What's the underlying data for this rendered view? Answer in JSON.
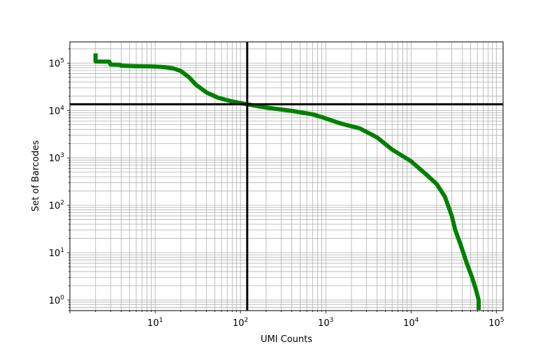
{
  "chart_data": {
    "type": "line",
    "title": "",
    "xlabel": "UMI Counts",
    "ylabel": "Set of Barcodes",
    "xscale": "log",
    "yscale": "log",
    "xlim": [
      1,
      120000
    ],
    "ylim": [
      0.6,
      280000
    ],
    "grid": "on (major and minor)",
    "x_ticks": [
      {
        "base": "10",
        "exp": "1",
        "value": 10
      },
      {
        "base": "10",
        "exp": "2",
        "value": 100
      },
      {
        "base": "10",
        "exp": "3",
        "value": 1000
      },
      {
        "base": "10",
        "exp": "4",
        "value": 10000
      },
      {
        "base": "10",
        "exp": "5",
        "value": 100000
      }
    ],
    "y_ticks": [
      {
        "base": "10",
        "exp": "0",
        "value": 1
      },
      {
        "base": "10",
        "exp": "1",
        "value": 10
      },
      {
        "base": "10",
        "exp": "2",
        "value": 100
      },
      {
        "base": "10",
        "exp": "3",
        "value": 1000
      },
      {
        "base": "10",
        "exp": "4",
        "value": 10000
      },
      {
        "base": "10",
        "exp": "5",
        "value": 100000
      }
    ],
    "series": [
      {
        "color": "#008000",
        "points": [
          [
            2,
            160000
          ],
          [
            2,
            108000
          ],
          [
            2.9,
            107000
          ],
          [
            3,
            93000
          ],
          [
            3.9,
            92000
          ],
          [
            4,
            88000
          ],
          [
            6,
            86000
          ],
          [
            9,
            85000
          ],
          [
            12,
            83000
          ],
          [
            16,
            78000
          ],
          [
            20,
            68000
          ],
          [
            25,
            50000
          ],
          [
            30,
            35000
          ],
          [
            40,
            24000
          ],
          [
            55,
            18500
          ],
          [
            80,
            15500
          ],
          [
            120,
            13500
          ],
          [
            200,
            11500
          ],
          [
            400,
            9800
          ],
          [
            700,
            8300
          ],
          [
            1000,
            6800
          ],
          [
            1500,
            5300
          ],
          [
            2500,
            4200
          ],
          [
            4000,
            2700
          ],
          [
            6000,
            1500
          ],
          [
            10000,
            850
          ],
          [
            15000,
            450
          ],
          [
            20000,
            280
          ],
          [
            25000,
            150
          ],
          [
            30000,
            60
          ],
          [
            33000,
            30
          ],
          [
            38000,
            15
          ],
          [
            45000,
            6
          ],
          [
            52000,
            3
          ],
          [
            58000,
            1.6
          ],
          [
            62000,
            1
          ],
          [
            62000,
            0.62
          ]
        ]
      }
    ],
    "reference_lines": [
      {
        "orientation": "vertical",
        "x": 120,
        "color": "#000000"
      },
      {
        "orientation": "horizontal",
        "y": 13500,
        "color": "#000000"
      }
    ]
  }
}
